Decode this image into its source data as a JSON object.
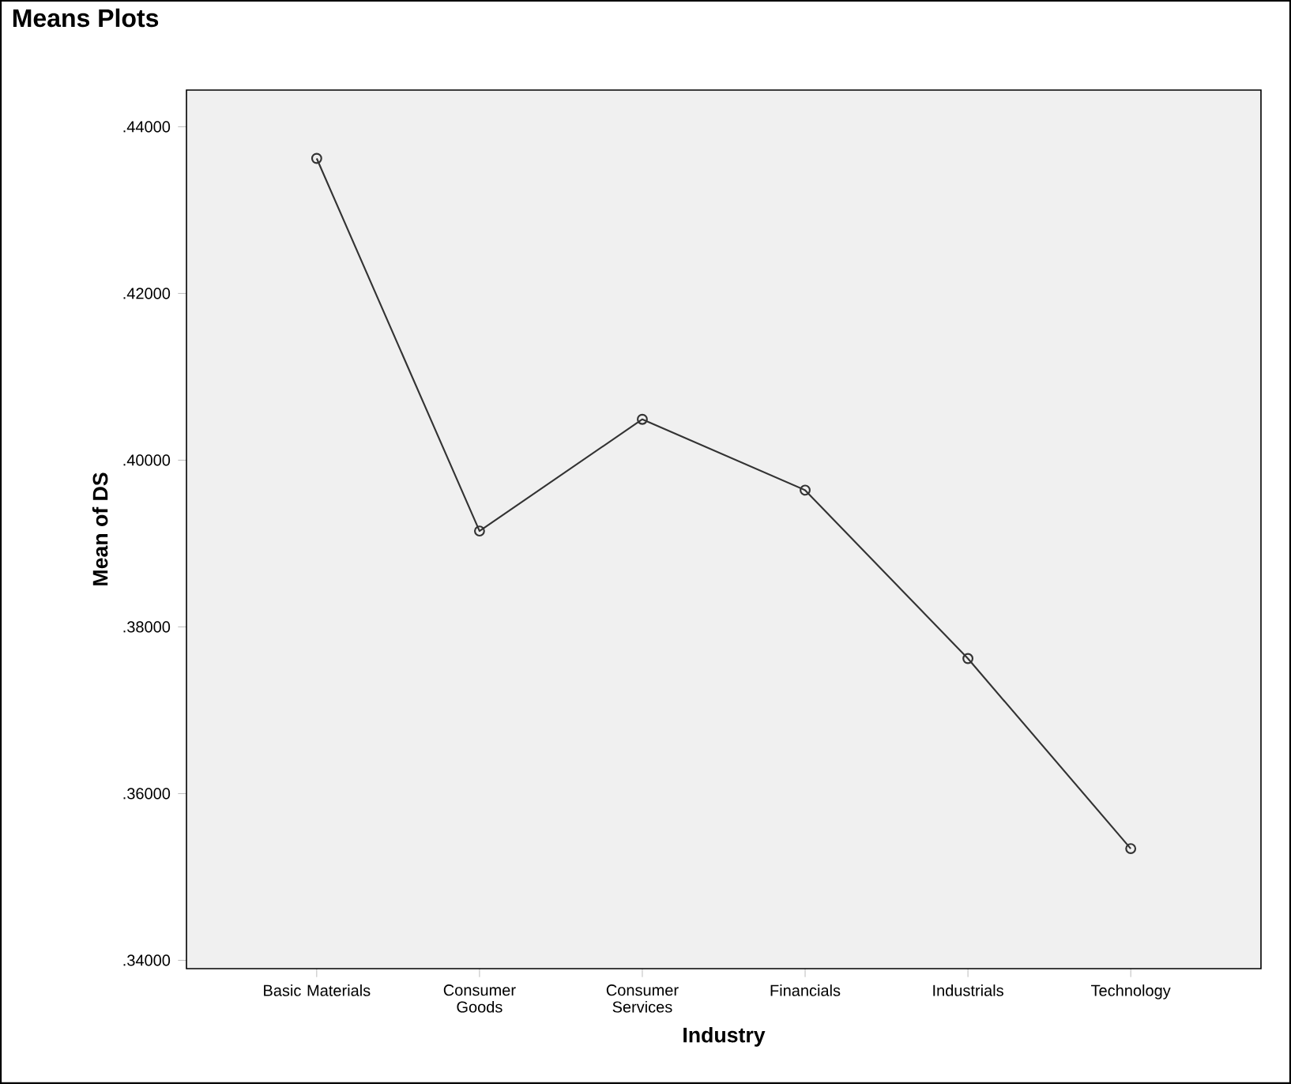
{
  "chart_data": {
    "type": "line",
    "title": "Means Plots",
    "xlabel": "Industry",
    "ylabel": "Mean of DS",
    "categories": [
      "Basic Materials",
      "Consumer Goods",
      "Consumer Services",
      "Financials",
      "Industrials",
      "Technology"
    ],
    "values": [
      0.4362,
      0.3915,
      0.4049,
      0.3964,
      0.3762,
      0.3534
    ],
    "color": "#333333",
    "marker": "circle",
    "line_style": "solid",
    "ylim": [
      0.339,
      0.4444
    ],
    "yticks": [
      {
        "value": 0.34,
        "label": ".34000"
      },
      {
        "value": 0.36,
        "label": ".36000"
      },
      {
        "value": 0.38,
        "label": ".38000"
      },
      {
        "value": 0.4,
        "label": ".40000"
      },
      {
        "value": 0.42,
        "label": ".42000"
      },
      {
        "value": 0.44,
        "label": ".44000"
      }
    ]
  }
}
